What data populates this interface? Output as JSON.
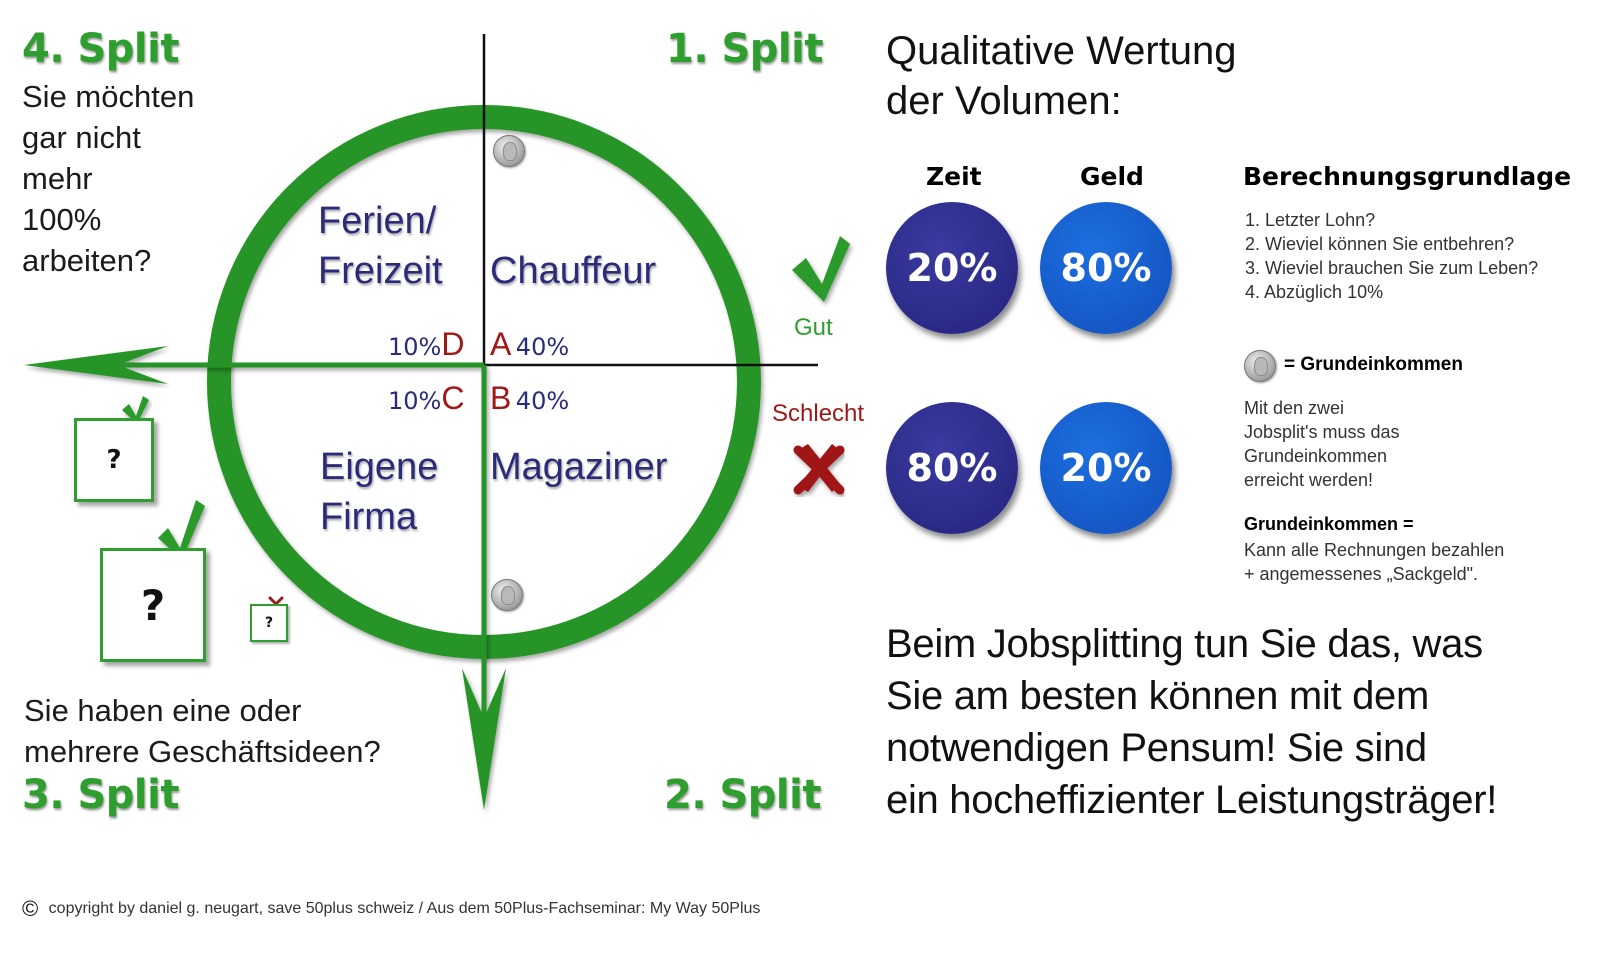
{
  "splits": {
    "s1": "1. Split",
    "s2": "2. Split",
    "s3": "3. Split",
    "s4": "4. Split"
  },
  "questions": {
    "top_left": [
      "Sie möchten",
      "gar nicht",
      "mehr",
      "100%",
      "arbeiten?"
    ],
    "bottom_left": [
      "Sie haben eine oder",
      "mehrere Geschäftsideen?"
    ]
  },
  "quadrants": {
    "a": {
      "name": [
        "Chauffeur"
      ],
      "letter": "A",
      "pct": "40%"
    },
    "b": {
      "name": [
        "Magaziner"
      ],
      "letter": "B",
      "pct": "40%"
    },
    "c": {
      "name": [
        "Eigene",
        "Firma"
      ],
      "letter": "C",
      "pct": "10%"
    },
    "d": {
      "name": [
        "Ferien/",
        "Freizeit"
      ],
      "letter": "D",
      "pct": "10%"
    }
  },
  "rating": {
    "good": "Gut",
    "bad": "Schlecht"
  },
  "qualitative": {
    "title": [
      "Qualitative Wertung",
      "der Volumen:"
    ],
    "col_time": "Zeit",
    "col_money": "Geld",
    "row_good": {
      "time": "20%",
      "money": "80%"
    },
    "row_bad": {
      "time": "80%",
      "money": "20%"
    }
  },
  "basis": {
    "title": "Berechnungsgrundlage",
    "items": [
      "1. Letzter Lohn?",
      "2. Wieviel können Sie entbehren?",
      "3. Wieviel brauchen Sie zum Leben?",
      "4. Abzüglich 10%"
    ],
    "coin_label": "= Grundeinkommen",
    "note": [
      "Mit den zwei",
      "Jobsplit's muss das",
      "Grundeinkommen",
      "erreicht werden!"
    ],
    "def_title": "Grundeinkommen =",
    "def": [
      "Kann alle Rechnungen bezahlen",
      "+ angemessenes „Sackgeld\"."
    ]
  },
  "conclusion": [
    "Beim Jobsplitting tun Sie das, was",
    "Sie am besten können mit dem",
    "notwendigen Pensum! Sie sind",
    "ein hocheffizienter Leistungsträger!"
  ],
  "boxes": {
    "mark": "?"
  },
  "footer": {
    "symbol": "©",
    "text": "copyright by daniel g. neugart, save 50plus schweiz / Aus dem 50Plus-Fachseminar: My Way 50Plus"
  },
  "colors": {
    "green": "#2e9e2e",
    "navy": "#2b2b7a",
    "dark_red": "#a01818",
    "bubble_dark": "#2a2a86",
    "bubble_blue": "#1558c6"
  }
}
